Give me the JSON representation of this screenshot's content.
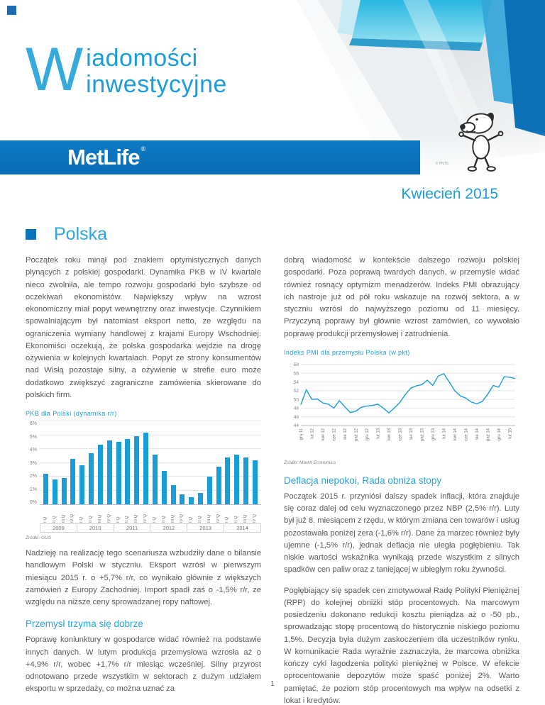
{
  "masthead": {
    "logo_letter": "W",
    "title_line1": "iadomości",
    "title_line2": "inwestycyjne",
    "brand": "MetLife",
    "brand_reg": "®",
    "snoopy_credit": "© PNTS"
  },
  "issue_date": "Kwiecień 2015",
  "section": {
    "title": "Polska"
  },
  "left_column": {
    "para1": "Początek roku minął pod znakiem optymistycznych danych płynących z polskiej gospodarki. Dynamika PKB w IV kwartale nieco zwolniła, ale tempo rozwoju gospodarki było szybsze od oczekiwań ekonomistów. Największy wpływ na wzrost ekonomiczny miał popyt wewnętrzny oraz inwestycje. Czynnikiem spowalniającym był natomiast eksport netto, ze względu na ograniczenia wymiany handlowej z krajami Europy Wschodniej. Ekonomiści oczekują, że polska gospodarka wejdzie na drogę ożywienia w kolejnych kwartałach. Popyt ze strony konsumentów nad Wisłą pozostaje silny, a ożywienie w strefie euro może dodatkowo zwiększyć zagraniczne zamówienia skierowane do polskich firm.",
    "para2": "Nadzieję na realizację tego scenariusza wzbudziły dane o bilansie handlowym Polski w styczniu. Eksport wzrósł w pierwszym miesiącu 2015 r. o +5,7% r/r, co wynikało głównie z większych zamówień z Europy Zachodniej. Import spadł zaś o -1,5% r/r, ze względu na niższe ceny sprowadzanej ropy naftowej.",
    "subheading": "Przemysł trzyma się dobrze",
    "para3": "Poprawę koniunktury w gospodarce widać również na podstawie innych danych. W lutym produkcja przemysłowa wzrosła aż o +4,9% r/r, wobec +1,7% r/r miesiąc wcześniej. Silny przyrost odnotowano przede wszystkim w sektorach z dużym udziałem eksportu w sprzedaży, co można uznać za"
  },
  "right_column": {
    "para1": "dobrą wiadomość w kontekście dalszego rozwoju polskiej gospodarki. Poza poprawą twardych danych, w przemyśle widać również rosnący optymizm menadżerów. Indeks PMI obrazujący ich nastroje już od pół roku wskazuje na rozwój sektora, a w styczniu wzrósł do najwyższego poziomu od 11 miesięcy. Przyczyną poprawy był głównie wzrost zamówień, co wywołało poprawę produkcji przemysłowej i zatrudnienia.",
    "subheading": "Deflacja niepokoi, Rada obniża stopy",
    "para2": "Początek 2015 r. przyniósł dalszy spadek inflacji, która znajduje się coraz dalej od celu wyznaczonego przez NBP (2,5% r/r). Luty był już 8. miesiącem z rzędu, w którym zmiana cen towarów i usług pozostawała poniżej zera (-1,6% r/r). Dane za marzec również były ujemne (-1,5% r/r), jednak deflacja nie uległa pogłębieniu. Tak niskie wartości wskaźnika wynikają przede wszystkim z silnych spadków cen paliw oraz z taniejącej w ubiegłym roku żywności.",
    "para3": "Pogłębiający się spadek cen zmotywował Radę Polityki Pieniężnej (RPP) do kolejnej obniżki stóp procentowych. Na marcowym posiedzeniu dokonano redukcji kosztu pieniądza aż o -50 pb., sprowadzając stopę procentową do historycznie niskiego poziomu 1,5%. Decyzja była dużym zaskoczeniem dla uczestników rynku. W komunikacie Rada wyraźnie zaznaczyła, że marcowa obniżka kończy cykl łagodzenia polityki pieniężnej w Polsce. W efekcie oprocentowanie depozytów może spaść poniżej 2%. Warto pamiętać, że poziom stóp procentowych ma wpływ na odsetki z lokat i kredytów."
  },
  "page_number": "1",
  "colors": {
    "metlife_blue": "#0b74bd",
    "accent_light_blue": "#2fa6dd",
    "chart_blue": "#1b9dd9",
    "body_text": "#58595b"
  },
  "chart_data": [
    {
      "type": "bar",
      "title": "PKB dla Polski (dynamika r/r)",
      "source": "Źródło: GUS",
      "xlabel": "",
      "ylabel": "",
      "ylim": [
        0,
        6
      ],
      "yticks": [
        "0%",
        "1%",
        "2%",
        "3%",
        "4%",
        "5%",
        "6%"
      ],
      "grid": true,
      "years": [
        "2009",
        "2010",
        "2011",
        "2012",
        "2013",
        "2014"
      ],
      "quarter_labels": [
        "I Q",
        "II Q",
        "III Q",
        "IV Q"
      ],
      "values": [
        2.2,
        1.8,
        1.9,
        3.3,
        2.8,
        3.7,
        4.3,
        4.6,
        4.5,
        4.7,
        4.9,
        5.2,
        3.6,
        2.4,
        1.4,
        0.7,
        0.5,
        0.8,
        2.0,
        2.7,
        3.4,
        3.6,
        3.4,
        3.2
      ],
      "bar_color": "#1b9dd9"
    },
    {
      "type": "line",
      "title": "Indeks PMI dla przemysłu Polska (w pkt)",
      "source": "Źródło: Markit Economics",
      "xlabel": "",
      "ylabel": "",
      "ylim": [
        44,
        58
      ],
      "yticks": [
        44,
        46,
        48,
        50,
        52,
        54,
        56,
        58
      ],
      "grid": true,
      "x_labels": [
        "gru 11",
        "lut 12",
        "kwi 12",
        "cze 12",
        "sie 12",
        "paź 12",
        "gru 12",
        "lut 13",
        "kwi 13",
        "cze 13",
        "sie 13",
        "paź 13",
        "gru 13",
        "lut 14",
        "kwi 14",
        "cze 14",
        "sie 14",
        "paź 14",
        "gru 14",
        "lut 15"
      ],
      "values": [
        48.8,
        52.2,
        50.0,
        50.1,
        49.2,
        48.9,
        48.0,
        49.7,
        48.3,
        47.0,
        47.3,
        48.2,
        48.5,
        48.6,
        48.9,
        48.0,
        46.9,
        48.0,
        49.3,
        51.1,
        52.6,
        53.1,
        53.4,
        54.4,
        53.2,
        55.4,
        55.9,
        54.0,
        52.0,
        50.8,
        50.3,
        49.4,
        49.0,
        49.5,
        51.2,
        53.2,
        52.8,
        55.2,
        55.1,
        54.8
      ],
      "line_color": "#1b9dd9",
      "legend": "none"
    }
  ]
}
